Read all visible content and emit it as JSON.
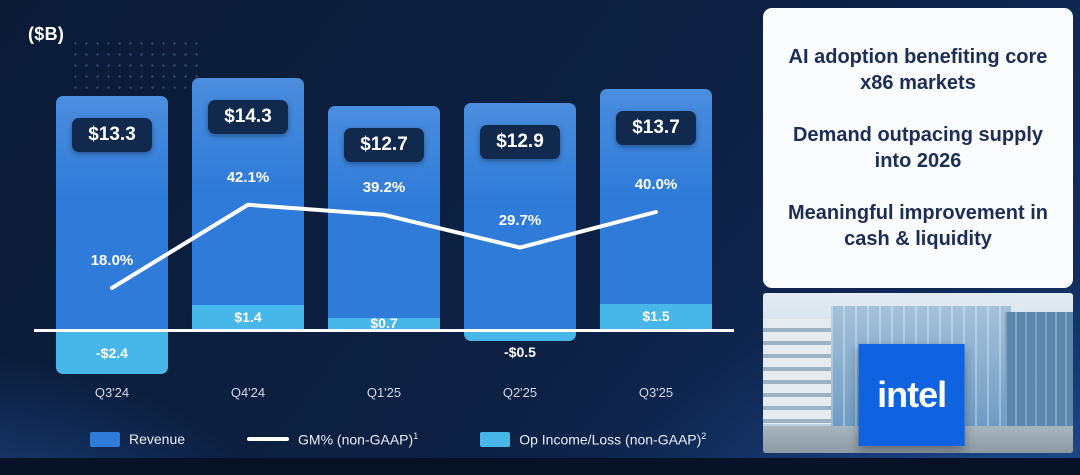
{
  "header": {
    "units_label": "($B)"
  },
  "chart_data": {
    "type": "bar",
    "categories": [
      "Q3'24",
      "Q4'24",
      "Q1'25",
      "Q2'25",
      "Q3'25"
    ],
    "series": [
      {
        "name": "Revenue",
        "type": "bar",
        "values": [
          13.3,
          14.3,
          12.7,
          12.9,
          13.7
        ],
        "labels": [
          "$13.3",
          "$14.3",
          "$12.7",
          "$12.9",
          "$13.7"
        ]
      },
      {
        "name": "GM% (non-GAAP)",
        "type": "line",
        "values": [
          18.0,
          42.1,
          39.2,
          29.7,
          40.0
        ],
        "labels": [
          "18.0%",
          "42.1%",
          "39.2%",
          "29.7%",
          "40.0%"
        ]
      },
      {
        "name": "Op Income/Loss (non-GAAP)",
        "type": "bar",
        "values": [
          -2.4,
          1.4,
          0.7,
          -0.5,
          1.5
        ],
        "labels": [
          "-$2.4",
          "$1.4",
          "$0.7",
          "-$0.5",
          "$1.5"
        ]
      }
    ],
    "title": "",
    "ylabel": "($B)",
    "ylim_revenue": [
      0,
      15
    ],
    "grid": false,
    "legend_position": "bottom"
  },
  "legend": {
    "revenue_label": "Revenue",
    "gm_label": "GM% (non-GAAP)",
    "gm_sup": "1",
    "op_label": "Op Income/Loss (non-GAAP)",
    "op_sup": "2"
  },
  "panel": {
    "lines": [
      "AI adoption benefiting core x86 markets",
      "Demand outpacing supply into 2026",
      "Meaningful improvement in cash & liquidity"
    ]
  },
  "photo": {
    "logo_text": "intel"
  },
  "colors": {
    "background": "#0d2145",
    "revenue_bar": "#2e7bd9",
    "op_bar": "#47b7e9",
    "gm_line": "#ffffff",
    "value_badge": "#12294e",
    "panel_text": "#1c2e55",
    "intel_sign": "#0f62e0"
  }
}
